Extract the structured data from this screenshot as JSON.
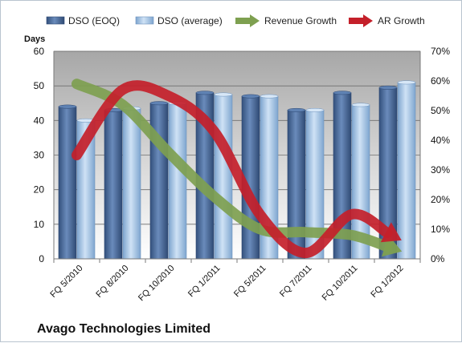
{
  "chart_data": {
    "type": "bar",
    "title": "",
    "caption": "Avago Technologies Limited",
    "categories": [
      "FQ 5/2010",
      "FQ 8/2010",
      "FQ 10/2010",
      "FQ 1/2011",
      "FQ 5/2011",
      "FQ 7/2011",
      "FQ 10/2011",
      "FQ 1/2012"
    ],
    "y_left": {
      "label": "Days",
      "range": [
        0,
        60
      ],
      "ticks": [
        0,
        10,
        20,
        30,
        40,
        50,
        60
      ]
    },
    "y_right": {
      "label": "",
      "range": [
        0,
        70
      ],
      "ticks": [
        "0%",
        "10%",
        "20%",
        "30%",
        "40%",
        "50%",
        "60%",
        "70%"
      ],
      "unit": "%"
    },
    "grid": true,
    "legend_position": "top",
    "series": [
      {
        "name": "DSO (EOQ)",
        "type": "bar",
        "axis": "left",
        "color": "#4a6a9a",
        "values": [
          44,
          43,
          45,
          48,
          47,
          43,
          48,
          49.5
        ]
      },
      {
        "name": "DSO (average)",
        "type": "bar",
        "axis": "left",
        "color": "#a6c4e4",
        "values": [
          40,
          43.5,
          45,
          47.5,
          47,
          43,
          44.5,
          51
        ]
      },
      {
        "name": "Revenue Growth",
        "type": "line-arrow",
        "axis": "right",
        "color": "#7ea050",
        "values": [
          59,
          52,
          36,
          21,
          10,
          9,
          8,
          3
        ]
      },
      {
        "name": "AR Growth",
        "type": "line-arrow",
        "axis": "right",
        "color": "#c4202a",
        "values": [
          35,
          57,
          55,
          43,
          15,
          2,
          15,
          7
        ]
      }
    ]
  }
}
